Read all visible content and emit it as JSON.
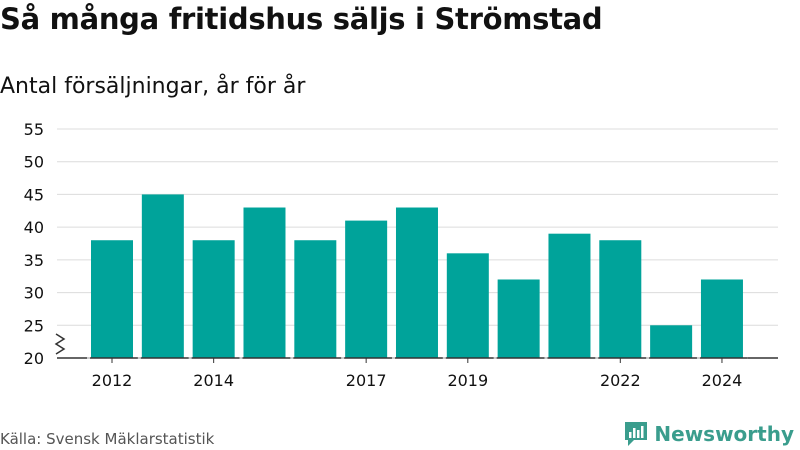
{
  "title": "Så många fritidshus säljs i Strömstad",
  "subtitle": "Antal försäljningar, år för år",
  "source": "Källa: Svensk Mäklarstatistik",
  "brand": {
    "name": "Newsworthy",
    "icon": "newsworthy-logo-icon",
    "color": "#3a9d8d"
  },
  "colors": {
    "bar": "#00a39a",
    "grid": "#dcdcdc",
    "axis": "#333333",
    "text": "#111111"
  },
  "chart_data": {
    "type": "bar",
    "title": "Så många fritidshus säljs i Strömstad",
    "subtitle": "Antal försäljningar, år för år",
    "x": [
      2012,
      2013,
      2014,
      2015,
      2016,
      2017,
      2018,
      2019,
      2020,
      2021,
      2022,
      2023,
      2024
    ],
    "values": [
      38,
      45,
      38,
      43,
      38,
      41,
      43,
      36,
      32,
      39,
      38,
      25,
      32
    ],
    "x_tick_labels": [
      {
        "x": 2012,
        "label": "2012"
      },
      {
        "x": 2014,
        "label": "2014"
      },
      {
        "x": 2017,
        "label": "2017"
      },
      {
        "x": 2019,
        "label": "2019"
      },
      {
        "x": 2022,
        "label": "2022"
      },
      {
        "x": 2024,
        "label": "2024"
      }
    ],
    "y_ticks": [
      20,
      25,
      30,
      35,
      40,
      45,
      50,
      55
    ],
    "ylim": [
      20,
      55
    ],
    "axis_break": true,
    "grid": true,
    "xlabel": "",
    "ylabel": ""
  }
}
